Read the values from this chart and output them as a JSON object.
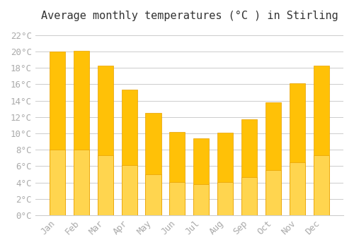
{
  "title": "Average monthly temperatures (°C ) in Stirling",
  "months": [
    "Jan",
    "Feb",
    "Mar",
    "Apr",
    "May",
    "Jun",
    "Jul",
    "Aug",
    "Sep",
    "Oct",
    "Nov",
    "Dec"
  ],
  "values": [
    20.0,
    20.1,
    18.3,
    15.3,
    12.5,
    10.2,
    9.4,
    10.1,
    11.7,
    13.8,
    16.1,
    18.3
  ],
  "bar_color_top": "#FFC107",
  "bar_color_bottom": "#FFD54F",
  "bar_edge_color": "#E8A000",
  "background_color": "#FFFFFF",
  "grid_color": "#CCCCCC",
  "tick_label_color": "#AAAAAA",
  "title_color": "#333333",
  "ylim": [
    0,
    23
  ],
  "yticks": [
    0,
    2,
    4,
    6,
    8,
    10,
    12,
    14,
    16,
    18,
    20,
    22
  ],
  "ytick_labels": [
    "0°C",
    "2°C",
    "4°C",
    "6°C",
    "8°C",
    "10°C",
    "12°C",
    "14°C",
    "16°C",
    "18°C",
    "20°C",
    "22°C"
  ],
  "title_fontsize": 11,
  "tick_fontsize": 9,
  "bar_width": 0.65
}
